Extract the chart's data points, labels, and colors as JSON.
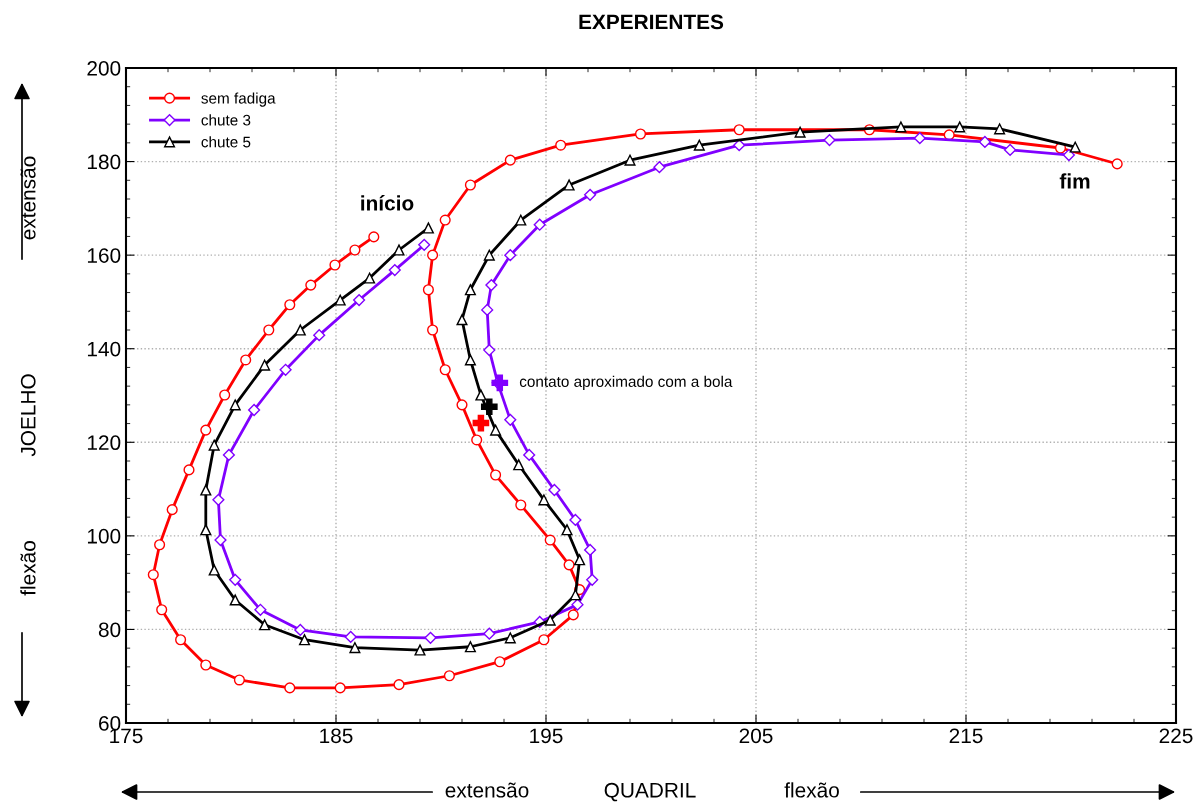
{
  "chart_data": {
    "type": "line",
    "title": "EXPERIENTES",
    "xlabel": "QUADRIL",
    "ylabel": "JOELHO",
    "xlim": [
      175,
      225
    ],
    "xticks": [
      175,
      185,
      195,
      205,
      215,
      225
    ],
    "ylim": [
      60,
      200
    ],
    "yticks": [
      60,
      80,
      100,
      120,
      140,
      160,
      180,
      200
    ],
    "grid": true,
    "legend": "top left",
    "line_style": "solid",
    "series": [
      {
        "name": "sem fadiga",
        "color": "#ff0000",
        "marker": "circle",
        "x": [
          186.8,
          185.9,
          184.95,
          183.8,
          182.8,
          181.8,
          180.7,
          179.7,
          178.8,
          178,
          177.2,
          176.6,
          176.3,
          176.7,
          177.6,
          178.8,
          180.4,
          182.8,
          185.2,
          188,
          190.4,
          192.8,
          194.9,
          196.3,
          196.6,
          196.1,
          195.2,
          193.8,
          192.6,
          191.7,
          191,
          190.2,
          189.6,
          189.4,
          189.6,
          190.2,
          191.4,
          193.3,
          195.7,
          199.5,
          204.2,
          210.4,
          214.2,
          219.5,
          222.2
        ],
        "values": [
          163.9,
          161.1,
          157.9,
          153.6,
          149.4,
          144,
          137.6,
          130.1,
          122.6,
          114.1,
          105.6,
          98.1,
          91.7,
          84.2,
          77.8,
          72.4,
          69.2,
          67.5,
          67.5,
          68.2,
          70.1,
          73.1,
          77.8,
          83.1,
          88.5,
          93.8,
          99.1,
          106.6,
          113,
          120.5,
          128,
          135.5,
          144,
          152.6,
          160,
          167.5,
          175,
          180.3,
          183.5,
          185.9,
          186.8,
          186.8,
          185.7,
          182.9,
          179.5
        ]
      },
      {
        "name": "chute 3",
        "color": "#8000ff",
        "marker": "diamond",
        "x": [
          189.2,
          187.8,
          186.1,
          184.2,
          182.6,
          181.1,
          179.9,
          179.4,
          179.5,
          180.2,
          181.4,
          183.3,
          185.7,
          189.5,
          192.3,
          194.7,
          196.5,
          197.2,
          197.1,
          196.4,
          195.4,
          194.2,
          193.3,
          192.7,
          192.3,
          192.2,
          192.4,
          193.3,
          194.7,
          197.1,
          200.4,
          204.2,
          208.5,
          212.8,
          215.9,
          217.1,
          219.9
        ],
        "values": [
          162.2,
          156.8,
          150.4,
          142.9,
          135.5,
          126.9,
          117.3,
          107.7,
          99.1,
          90.6,
          84.2,
          79.9,
          78.4,
          78.2,
          79.1,
          81.6,
          85.3,
          90.6,
          97,
          103.4,
          109.8,
          117.3,
          124.8,
          132.7,
          139.7,
          148.3,
          153.6,
          160,
          166.5,
          172.9,
          178.8,
          183.5,
          184.6,
          185,
          184.2,
          182.5,
          181.4
        ]
      },
      {
        "name": "chute 5",
        "color": "#000000",
        "marker": "triangle",
        "x": [
          189.4,
          188,
          186.6,
          185.2,
          183.3,
          181.6,
          180.2,
          179.2,
          178.8,
          178.8,
          179.2,
          180.2,
          181.6,
          183.5,
          185.9,
          189,
          191.4,
          193.3,
          195.2,
          196.4,
          196.6,
          196,
          194.9,
          193.7,
          192.6,
          191.9,
          191.4,
          191,
          191.4,
          192.3,
          193.8,
          196.1,
          199,
          202.3,
          207.1,
          211.9,
          214.7,
          216.6,
          220.2
        ],
        "values": [
          165.8,
          161.1,
          155.1,
          150.4,
          144,
          136.5,
          128,
          119.4,
          109.8,
          101.3,
          92.7,
          86.3,
          81,
          77.8,
          76.1,
          75.6,
          76.3,
          78.2,
          82,
          87.4,
          94.9,
          101.3,
          107.7,
          115.2,
          122.6,
          130.1,
          137.6,
          146.2,
          152.6,
          160,
          167.5,
          175,
          180.3,
          183.5,
          186.3,
          187.4,
          187.4,
          187,
          183.1
        ]
      },
      {
        "type": "scatter",
        "color": "#ff0000",
        "marker": "cross",
        "x": [
          191.9
        ],
        "values": [
          124.1
        ]
      },
      {
        "type": "scatter",
        "color": "#000000",
        "marker": "cross",
        "x": [
          192.3
        ],
        "values": [
          127.6
        ]
      },
      {
        "type": "scatter",
        "color": "#8000ff",
        "marker": "cross",
        "x": [
          192.8
        ],
        "values": [
          132.7
        ]
      }
    ],
    "annotations": [
      "início",
      "fim",
      {
        "text": "contato aproximado com a bola",
        "x": 192.8,
        "y": 132.7
      },
      "extensão",
      "flexão",
      "extensão",
      "flexão"
    ]
  }
}
